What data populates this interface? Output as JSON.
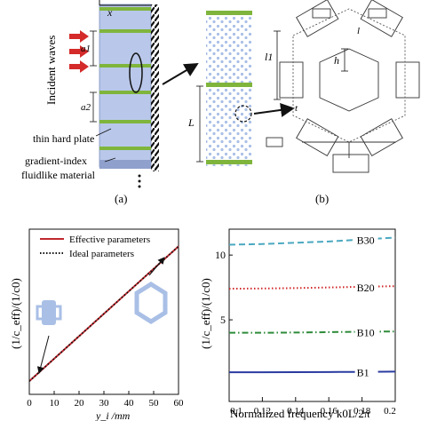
{
  "panel_a": {
    "incident_label": "Incident waves",
    "x_label": "x",
    "a1_label": "a1",
    "a2_label": "a2",
    "plate_label": "thin hard plate",
    "medium_label_1": "gradient-index",
    "medium_label_2": "fluidlike material",
    "caption": "(a)"
  },
  "panel_b": {
    "L_label": "L",
    "l1_label": "l1",
    "h_label": "h",
    "t_label": "t",
    "l_label": "l",
    "caption": "(b)"
  },
  "chart_data": [
    {
      "type": "line",
      "ylabel": "(1/c_eff)/(1/c0)",
      "xlabel": "y_i /mm",
      "xlim": [
        0,
        60
      ],
      "xticks": [
        0,
        10,
        20,
        30,
        40,
        50,
        60
      ],
      "series": [
        {
          "name": "Effective parameters",
          "color": "#c0282d",
          "style": "solid",
          "x": [
            0,
            60
          ],
          "y": [
            1.0,
            11.2
          ]
        },
        {
          "name": "Ideal parameters",
          "color": "#111111",
          "style": "dotted",
          "x": [
            0,
            60
          ],
          "y": [
            1.0,
            11.2
          ]
        }
      ],
      "legend": "top-left"
    },
    {
      "type": "line",
      "ylabel": "(1/c_eff)/(1/c0)",
      "xlabel": "Normalized frequency  k0L/2π",
      "xlim": [
        0.1,
        0.2
      ],
      "ylim": [
        0,
        12
      ],
      "xticks": [
        0.1,
        0.12,
        0.14,
        0.16,
        0.18,
        0.2
      ],
      "xtick_labels": [
        "0.1",
        "0.12",
        "0.14",
        "0.16",
        "0.18",
        "0.2"
      ],
      "yticks": [
        5,
        10
      ],
      "series": [
        {
          "name": "B30",
          "color": "#4aa8c0",
          "style": "dashed",
          "x": [
            0.1,
            0.12,
            0.14,
            0.16,
            0.18,
            0.2
          ],
          "y": [
            10.8,
            10.85,
            10.95,
            11.05,
            11.2,
            11.35
          ]
        },
        {
          "name": "B20",
          "color": "#d02828",
          "style": "dotted",
          "x": [
            0.1,
            0.12,
            0.14,
            0.16,
            0.18,
            0.2
          ],
          "y": [
            7.4,
            7.42,
            7.45,
            7.5,
            7.55,
            7.6
          ]
        },
        {
          "name": "B10",
          "color": "#2e8b3a",
          "style": "dashdot",
          "x": [
            0.1,
            0.12,
            0.14,
            0.16,
            0.18,
            0.2
          ],
          "y": [
            4.0,
            4.0,
            4.02,
            4.05,
            4.08,
            4.1
          ]
        },
        {
          "name": "B1",
          "color": "#2a3ba0",
          "style": "solid",
          "x": [
            0.1,
            0.12,
            0.14,
            0.16,
            0.18,
            0.2
          ],
          "y": [
            0.95,
            0.95,
            0.96,
            0.97,
            0.98,
            1.0
          ]
        }
      ]
    }
  ]
}
